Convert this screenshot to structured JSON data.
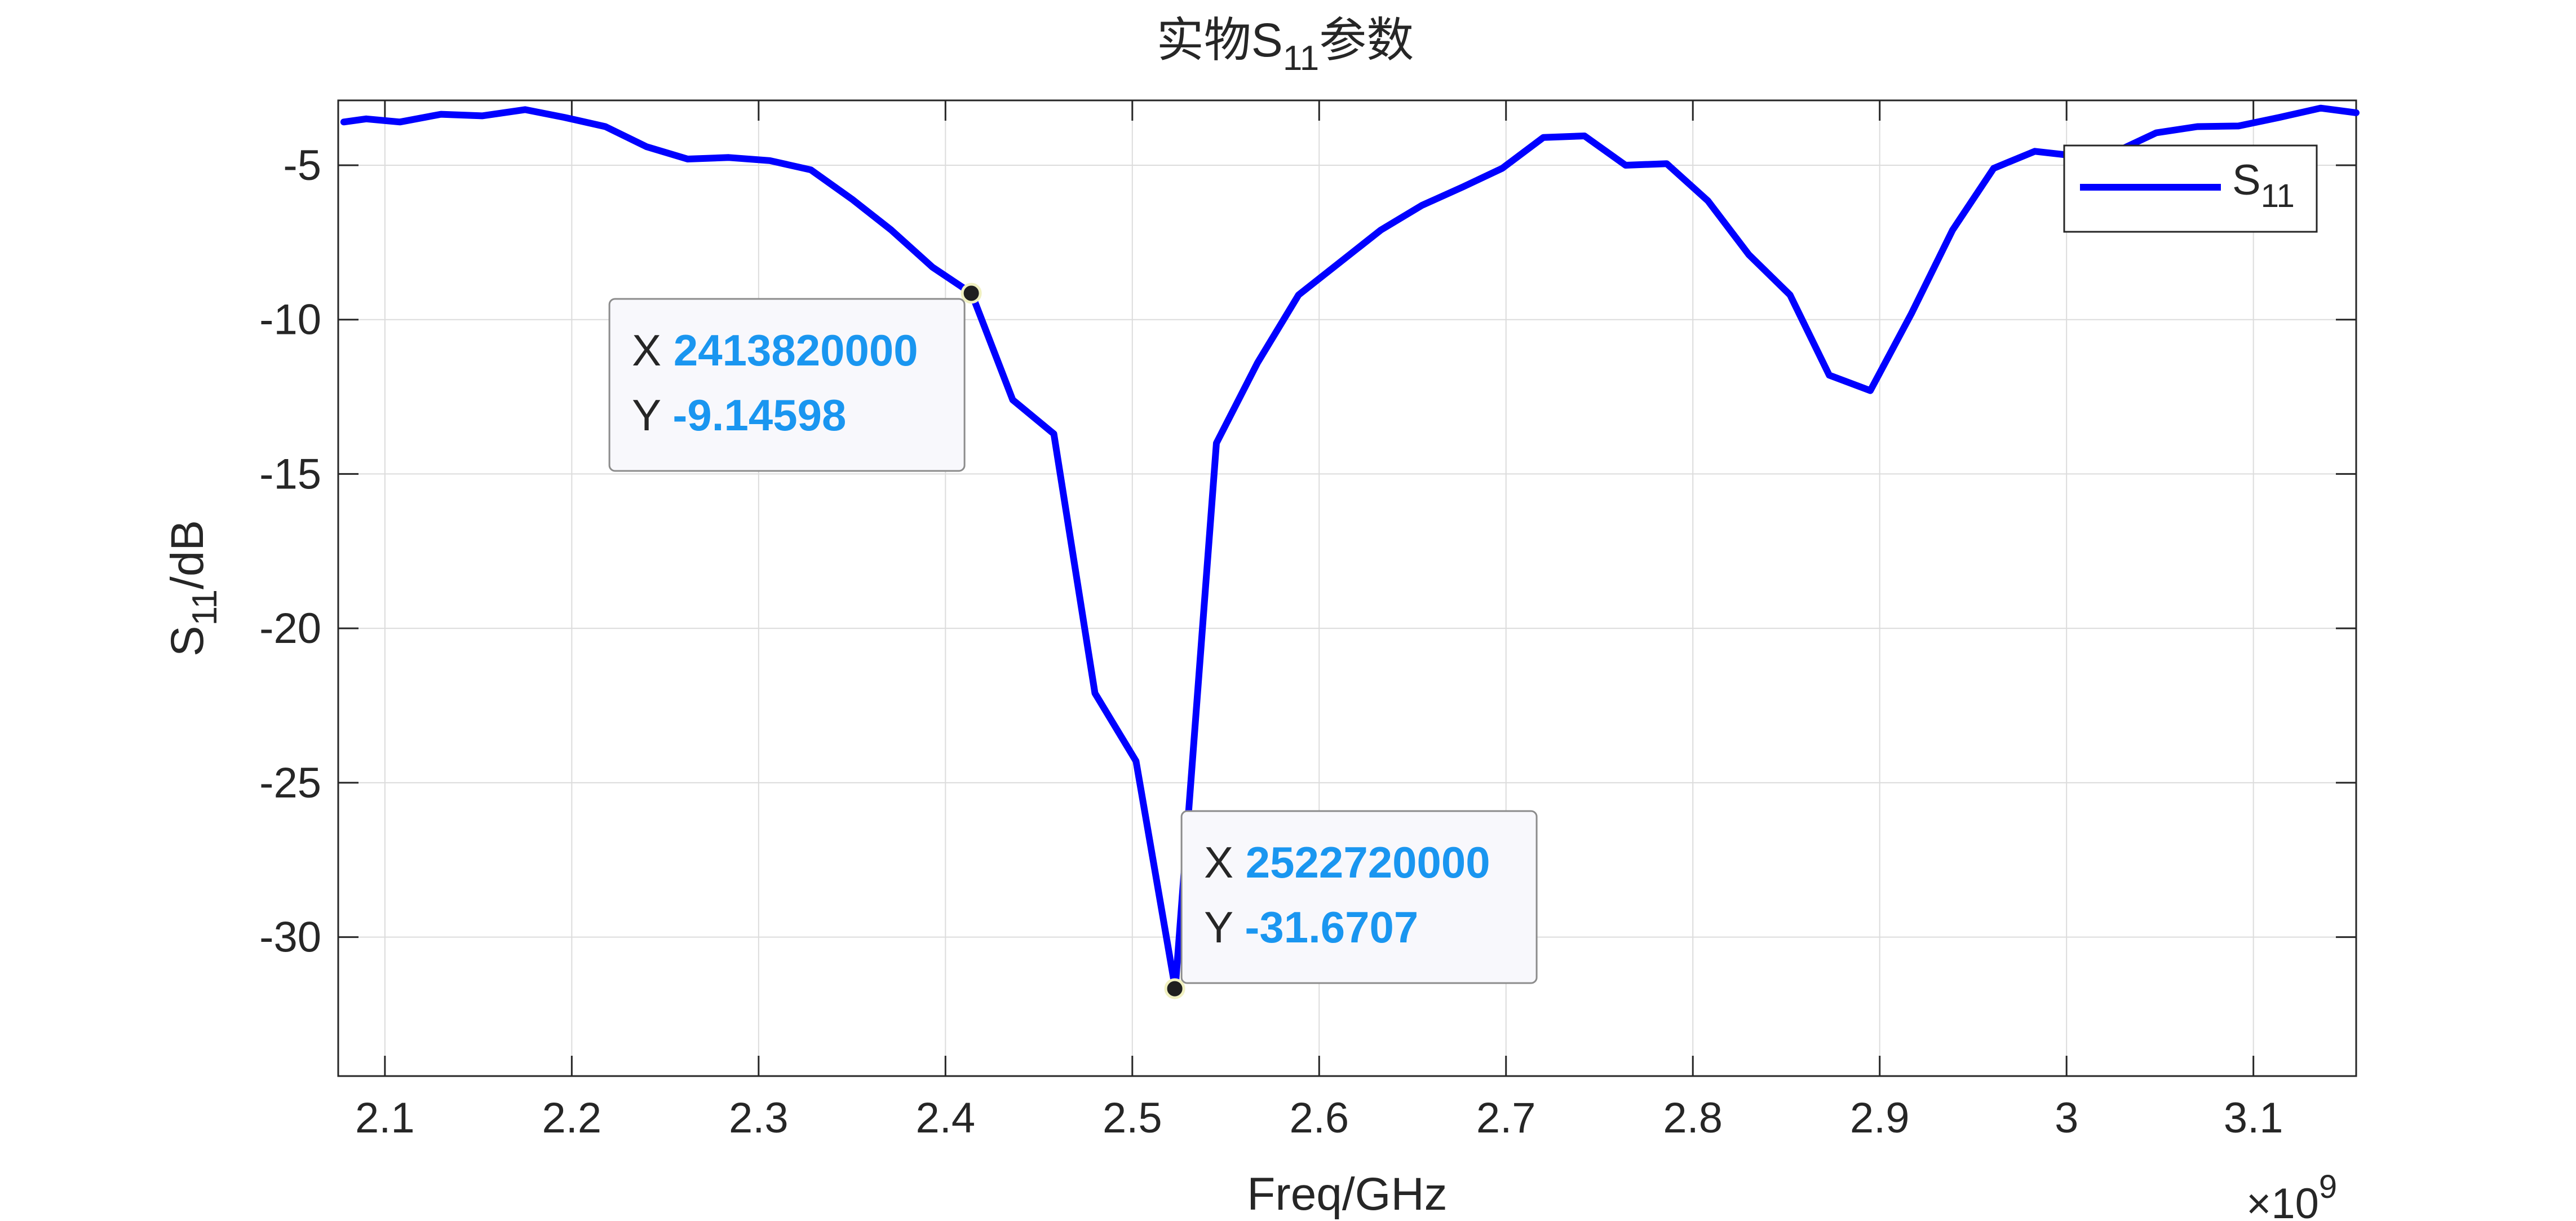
{
  "chart_data": {
    "type": "line",
    "title_main": "实物S",
    "title_sub": "11",
    "title_tail": "参数",
    "xlabel": "Freq/GHz",
    "ylabel_main": "S",
    "ylabel_sub": "11",
    "ylabel_tail": "/dB",
    "x_exponent_base": "×10",
    "x_exponent_power": "9",
    "xlim": [
      2.075,
      3.155
    ],
    "ylim": [
      -34.5,
      -2.9
    ],
    "xticks": [
      2.1,
      2.2,
      2.3,
      2.4,
      2.5,
      2.6,
      2.7,
      2.8,
      2.9,
      3.0,
      3.1
    ],
    "xtick_labels": [
      "2.1",
      "2.2",
      "2.3",
      "2.4",
      "2.5",
      "2.6",
      "2.7",
      "2.8",
      "2.9",
      "3",
      "3.1"
    ],
    "yticks": [
      -5,
      -10,
      -15,
      -20,
      -25,
      -30
    ],
    "ytick_labels": [
      "-5",
      "-10",
      "-15",
      "-20",
      "-25",
      "-30"
    ],
    "grid": true,
    "legend_position": "top-right",
    "series": [
      {
        "name_main": "S",
        "name_sub": "11",
        "color": "#0000ff",
        "x": [
          2.078,
          2.09,
          2.108,
          2.13,
          2.152,
          2.175,
          2.196,
          2.218,
          2.24,
          2.262,
          2.284,
          2.306,
          2.328,
          2.35,
          2.371,
          2.393,
          2.414,
          2.436,
          2.458,
          2.48,
          2.502,
          2.523,
          2.545,
          2.567,
          2.589,
          2.611,
          2.633,
          2.655,
          2.677,
          2.698,
          2.72,
          2.742,
          2.764,
          2.786,
          2.808,
          2.83,
          2.852,
          2.873,
          2.895,
          2.917,
          2.939,
          2.961,
          2.983,
          3.005,
          3.027,
          3.048,
          3.07,
          3.092,
          3.114,
          3.136,
          3.155
        ],
        "y": [
          -3.6,
          -3.5,
          -3.6,
          -3.35,
          -3.4,
          -3.2,
          -3.45,
          -3.75,
          -4.4,
          -4.8,
          -4.75,
          -4.85,
          -5.15,
          -6.1,
          -7.1,
          -8.3,
          -9.15,
          -12.6,
          -13.7,
          -22.1,
          -24.3,
          -31.67,
          -14.0,
          -11.4,
          -9.2,
          -8.15,
          -7.1,
          -6.3,
          -5.7,
          -5.1,
          -4.1,
          -4.05,
          -5.0,
          -4.95,
          -6.15,
          -7.9,
          -9.2,
          -11.8,
          -12.3,
          -9.8,
          -7.1,
          -5.1,
          -4.55,
          -4.7,
          -4.55,
          -3.95,
          -3.75,
          -3.73,
          -3.45,
          -3.15,
          -3.3
        ]
      }
    ],
    "datatips": [
      {
        "x": 2.41382,
        "y": -9.14598,
        "x_label": "X",
        "x_value": "2413820000",
        "y_label": "Y",
        "y_value": "-9.14598",
        "box_side": "left-below"
      },
      {
        "x": 2.52272,
        "y": -31.6707,
        "x_label": "X",
        "x_value": "2522720000",
        "y_label": "Y",
        "y_value": "-31.6707",
        "box_side": "right-above"
      }
    ],
    "colors": {
      "line": "#0000ff",
      "datatip_value": "#1a96f0",
      "grid": "#dcdcdc",
      "axis": "#262626"
    }
  }
}
